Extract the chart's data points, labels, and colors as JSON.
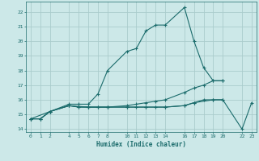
{
  "title": "",
  "xlabel": "Humidex (Indice chaleur)",
  "bg_color": "#cce8e8",
  "grid_color": "#aacccc",
  "line_color": "#1a6b6b",
  "xlim": [
    -0.5,
    23.5
  ],
  "ylim": [
    13.8,
    22.7
  ],
  "xticks": [
    0,
    1,
    2,
    4,
    5,
    6,
    7,
    8,
    10,
    11,
    12,
    13,
    14,
    16,
    17,
    18,
    19,
    20,
    22,
    23
  ],
  "yticks": [
    14,
    15,
    16,
    17,
    18,
    19,
    20,
    21,
    22
  ],
  "lines": [
    {
      "x": [
        0,
        1,
        2,
        4,
        5,
        6,
        7,
        8,
        10,
        11,
        12,
        13,
        14,
        16,
        17,
        18,
        19,
        20
      ],
      "y": [
        14.7,
        14.7,
        15.2,
        15.7,
        15.7,
        15.7,
        16.4,
        18.0,
        19.3,
        19.5,
        20.7,
        21.1,
        21.1,
        22.3,
        20.0,
        18.2,
        17.3,
        17.3
      ]
    },
    {
      "x": [
        0,
        1,
        2,
        4,
        5,
        6,
        7,
        8,
        10,
        11,
        12,
        13,
        14,
        16,
        17,
        18,
        19,
        20
      ],
      "y": [
        14.7,
        14.7,
        15.2,
        15.6,
        15.5,
        15.5,
        15.5,
        15.5,
        15.5,
        15.5,
        15.5,
        15.5,
        15.5,
        15.6,
        15.8,
        16.0,
        16.0,
        16.0
      ]
    },
    {
      "x": [
        0,
        1,
        2,
        4,
        5,
        6,
        7,
        8,
        10,
        11,
        12,
        13,
        14,
        16,
        17,
        18,
        19,
        20
      ],
      "y": [
        14.7,
        14.7,
        15.2,
        15.6,
        15.5,
        15.5,
        15.5,
        15.5,
        15.6,
        15.7,
        15.8,
        15.9,
        16.0,
        16.5,
        16.8,
        17.0,
        17.3,
        17.3
      ]
    },
    {
      "x": [
        0,
        2,
        4,
        6,
        8,
        10,
        12,
        14,
        16,
        17,
        19,
        20,
        22,
        23
      ],
      "y": [
        14.7,
        15.2,
        15.6,
        15.5,
        15.5,
        15.5,
        15.5,
        15.5,
        15.6,
        15.8,
        16.0,
        16.0,
        14.0,
        15.8
      ]
    }
  ]
}
